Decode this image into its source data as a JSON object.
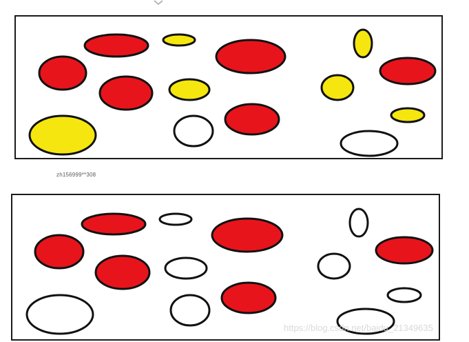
{
  "colors": {
    "red": "#e8141c",
    "yellow": "#f5e60f",
    "white": "#ffffff",
    "outline": "#111111",
    "frame": "#1a1a1a"
  },
  "caption": "zh156999**308",
  "watermark": "https://blog.csdn.net/baidu_21349635",
  "panels": [
    {
      "name": "panel-top",
      "shapes": [
        "red",
        "yellow",
        "red",
        "yellow",
        "red",
        "red",
        "yellow",
        "red",
        "yellow",
        "yellow",
        "white",
        "red",
        "yellow",
        "white"
      ]
    },
    {
      "name": "panel-bottom",
      "shapes": [
        "red",
        "white",
        "red",
        "white",
        "red",
        "red",
        "white",
        "red",
        "white",
        "white",
        "white",
        "red",
        "white",
        "white"
      ]
    }
  ]
}
